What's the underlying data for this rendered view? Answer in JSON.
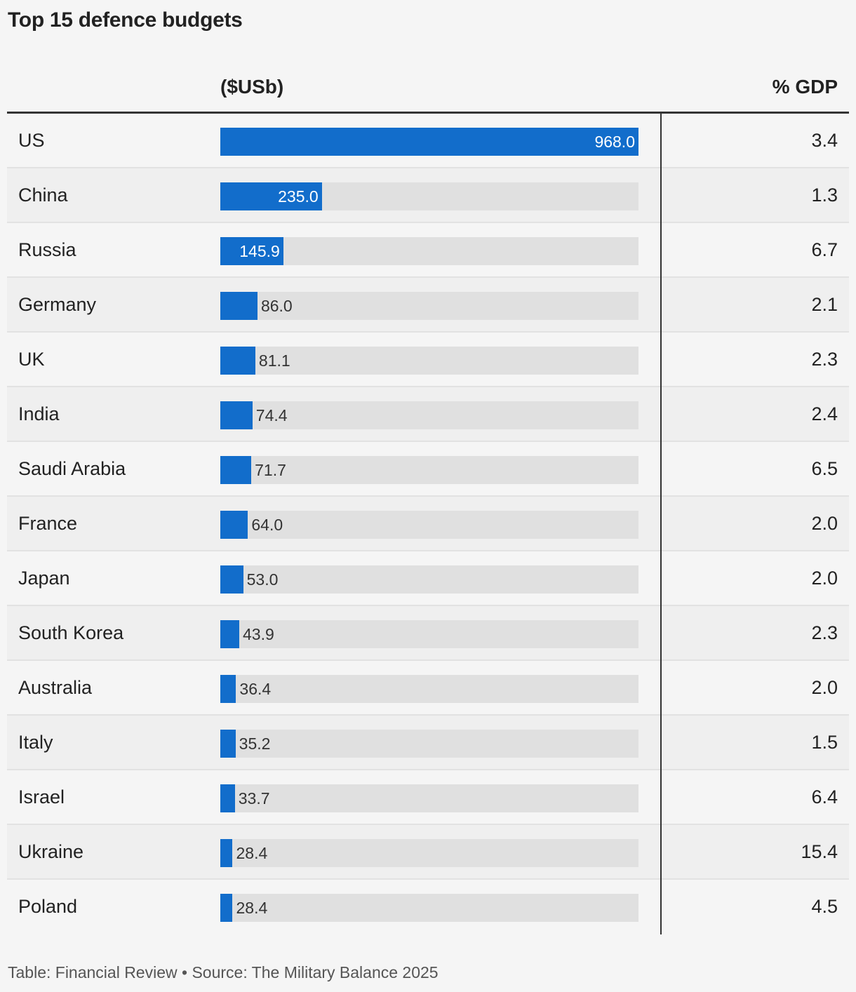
{
  "title": "Top 15 defence budgets",
  "columns": {
    "usd": "($USb)",
    "gdp": "% GDP"
  },
  "footer": "Table: Financial Review • Source: The Military Balance 2025",
  "colors": {
    "bar": "#126dcb",
    "track": "#e0e0e0"
  },
  "chart_data": {
    "type": "table",
    "title": "Top 15 defence budgets",
    "bar_max": 968.0,
    "rows": [
      {
        "country": "US",
        "budget": "968.0",
        "value": 968.0,
        "gdp": "3.4"
      },
      {
        "country": "China",
        "budget": "235.0",
        "value": 235.0,
        "gdp": "1.3"
      },
      {
        "country": "Russia",
        "budget": "145.9",
        "value": 145.9,
        "gdp": "6.7"
      },
      {
        "country": "Germany",
        "budget": "86.0",
        "value": 86.0,
        "gdp": "2.1"
      },
      {
        "country": "UK",
        "budget": "81.1",
        "value": 81.1,
        "gdp": "2.3"
      },
      {
        "country": "India",
        "budget": "74.4",
        "value": 74.4,
        "gdp": "2.4"
      },
      {
        "country": "Saudi Arabia",
        "budget": "71.7",
        "value": 71.7,
        "gdp": "6.5"
      },
      {
        "country": "France",
        "budget": "64.0",
        "value": 64.0,
        "gdp": "2.0"
      },
      {
        "country": "Japan",
        "budget": "53.0",
        "value": 53.0,
        "gdp": "2.0"
      },
      {
        "country": "South Korea",
        "budget": "43.9",
        "value": 43.9,
        "gdp": "2.3"
      },
      {
        "country": "Australia",
        "budget": "36.4",
        "value": 36.4,
        "gdp": "2.0"
      },
      {
        "country": "Italy",
        "budget": "35.2",
        "value": 35.2,
        "gdp": "1.5"
      },
      {
        "country": "Israel",
        "budget": "33.7",
        "value": 33.7,
        "gdp": "6.4"
      },
      {
        "country": "Ukraine",
        "budget": "28.4",
        "value": 28.4,
        "gdp": "15.4"
      },
      {
        "country": "Poland",
        "budget": "28.4",
        "value": 28.4,
        "gdp": "4.5"
      }
    ]
  }
}
